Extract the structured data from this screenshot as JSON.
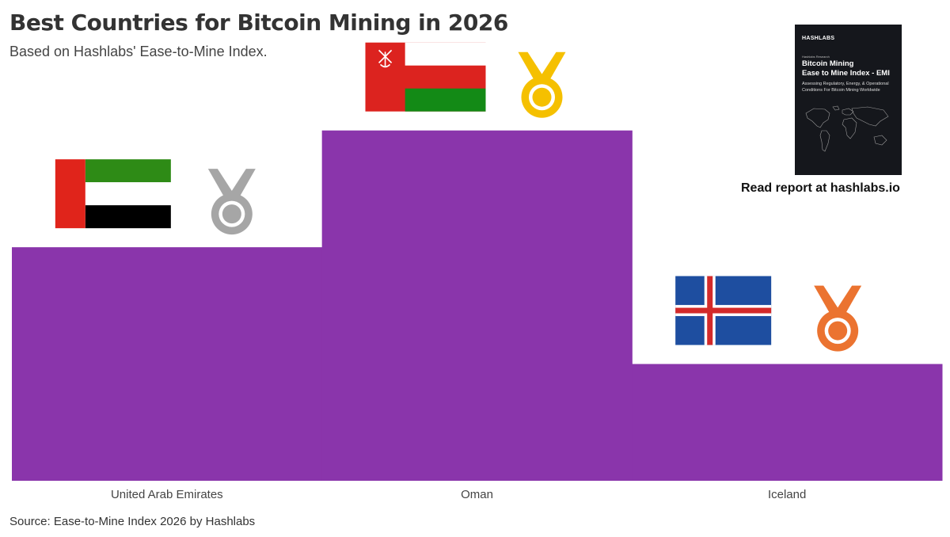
{
  "header": {
    "title": "Best Countries for Bitcoin Mining in 2026",
    "subtitle": "Based on Hashlabs' Ease-to-Mine Index."
  },
  "source": "Source: Ease-to-Mine Index 2026 by Hashlabs",
  "report": {
    "brand": "HASHLABS",
    "kicker": "Hashlabs Research",
    "title_line1": "Bitcoin Mining",
    "title_line2": "Ease to Mine Index - EMI",
    "subtitle": "Assessing Regulatory, Energy, & Operational Conditions For Bitcoin Mining Worldwide",
    "cta": "Read report at hashlabs.io"
  },
  "colors": {
    "bar": "#8a35ab",
    "gold": "#f5c000",
    "silver": "#a6a6a6",
    "bronze": "#eb7330"
  },
  "chart_data": {
    "type": "bar",
    "title": "Best Countries for Bitcoin Mining in 2026",
    "subtitle": "Based on Hashlabs' Ease-to-Mine Index.",
    "categories": [
      "United Arab Emirates",
      "Oman",
      "Iceland"
    ],
    "values": [
      2,
      3,
      1
    ],
    "ranks": [
      2,
      1,
      3
    ],
    "medals": [
      "silver",
      "gold",
      "bronze"
    ],
    "flags": [
      "uae",
      "oman",
      "iceland"
    ],
    "xlabel": "",
    "ylabel": "",
    "ylim": [
      0,
      3.5
    ],
    "grid": false,
    "legend": "none"
  }
}
